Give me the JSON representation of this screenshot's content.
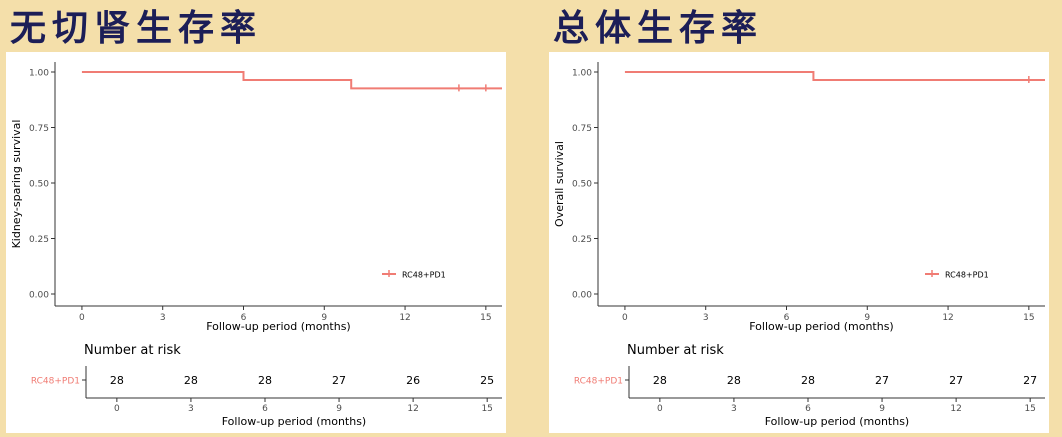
{
  "chart_data": [
    {
      "type": "line",
      "title": "无切肾生存率",
      "xlabel": "Follow-up period (months)",
      "ylabel": "Kidney-sparing survival",
      "xlim": [
        -1,
        15.6
      ],
      "ylim": [
        0,
        1
      ],
      "x_ticks": [
        0,
        3,
        6,
        9,
        12,
        15
      ],
      "y_ticks": [
        0.0,
        0.25,
        0.5,
        0.75,
        1.0
      ],
      "y_tick_labels": [
        "0.00",
        "0.25",
        "0.50",
        "0.75",
        "1.00"
      ],
      "grid": false,
      "legend_position": "bottom-right",
      "series": [
        {
          "name": "RC48+PD1",
          "color": "#f07c74",
          "steps": [
            [
              0,
              1.0
            ],
            [
              6,
              0.964
            ],
            [
              10,
              0.926
            ],
            [
              15.6,
              0.926
            ]
          ],
          "censored": [
            [
              14,
              0.926
            ],
            [
              15,
              0.926
            ]
          ]
        }
      ],
      "risk_table": {
        "title": "Number at risk",
        "xlabel": "Follow-up period (months)",
        "strata": "RC48+PD1",
        "times": [
          0,
          3,
          6,
          9,
          12,
          15
        ],
        "counts": [
          "28",
          "28",
          "28",
          "27",
          "26",
          "25"
        ]
      }
    },
    {
      "type": "line",
      "title": "总体生存率",
      "xlabel": "Follow-up period (months)",
      "ylabel": "Overall survival",
      "xlim": [
        -1,
        15.6
      ],
      "ylim": [
        0,
        1
      ],
      "x_ticks": [
        0,
        3,
        6,
        9,
        12,
        15
      ],
      "y_ticks": [
        0.0,
        0.25,
        0.5,
        0.75,
        1.0
      ],
      "y_tick_labels": [
        "0.00",
        "0.25",
        "0.50",
        "0.75",
        "1.00"
      ],
      "grid": false,
      "legend_position": "bottom-right",
      "series": [
        {
          "name": "RC48+PD1",
          "color": "#f07c74",
          "steps": [
            [
              0,
              1.0
            ],
            [
              7,
              0.964
            ],
            [
              15.6,
              0.964
            ]
          ],
          "censored": [
            [
              15,
              0.964
            ]
          ]
        }
      ],
      "risk_table": {
        "title": "Number at risk",
        "xlabel": "Follow-up period (months)",
        "strata": "RC48+PD1",
        "times": [
          0,
          3,
          6,
          9,
          12,
          15
        ],
        "counts": [
          "28",
          "28",
          "28",
          "27",
          "27",
          "27"
        ]
      }
    }
  ]
}
